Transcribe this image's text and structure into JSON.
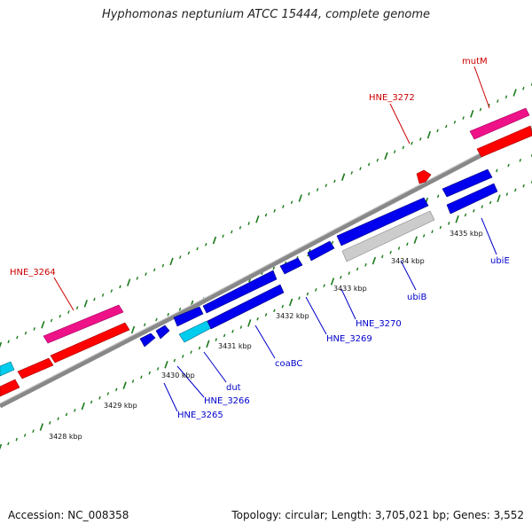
{
  "title": "Hyphomonas neptunium ATCC 15444, complete genome",
  "footer": {
    "accession": "Accession: NC_008358",
    "summary": "Topology: circular; Length: 3,705,021 bp; Genes: 3,552"
  },
  "colors": {
    "forward_gene": "#0000ee",
    "reverse_gene": "#ff0000",
    "reverse_pink": "#ee1188",
    "cyan": "#00ccee",
    "gray_gene": "#cccccc",
    "backbone": "#888888",
    "tick": "#1a7a1a",
    "label_blue": "#0000cc",
    "label_red": "#cc0000"
  },
  "scale_labels": [
    "3428 kbp",
    "3429 kbp",
    "3430 kbp",
    "3431 kbp",
    "3432 kbp",
    "3433 kbp",
    "3434 kbp",
    "3435 kbp"
  ],
  "forward_labels": [
    "HNE_3265",
    "HNE_3266",
    "dut",
    "coaBC",
    "HNE_3269",
    "HNE_3270",
    "ubiB",
    "ubiE"
  ],
  "reverse_labels": [
    "HNE_3264",
    "HNE_3272",
    "mutM"
  ]
}
